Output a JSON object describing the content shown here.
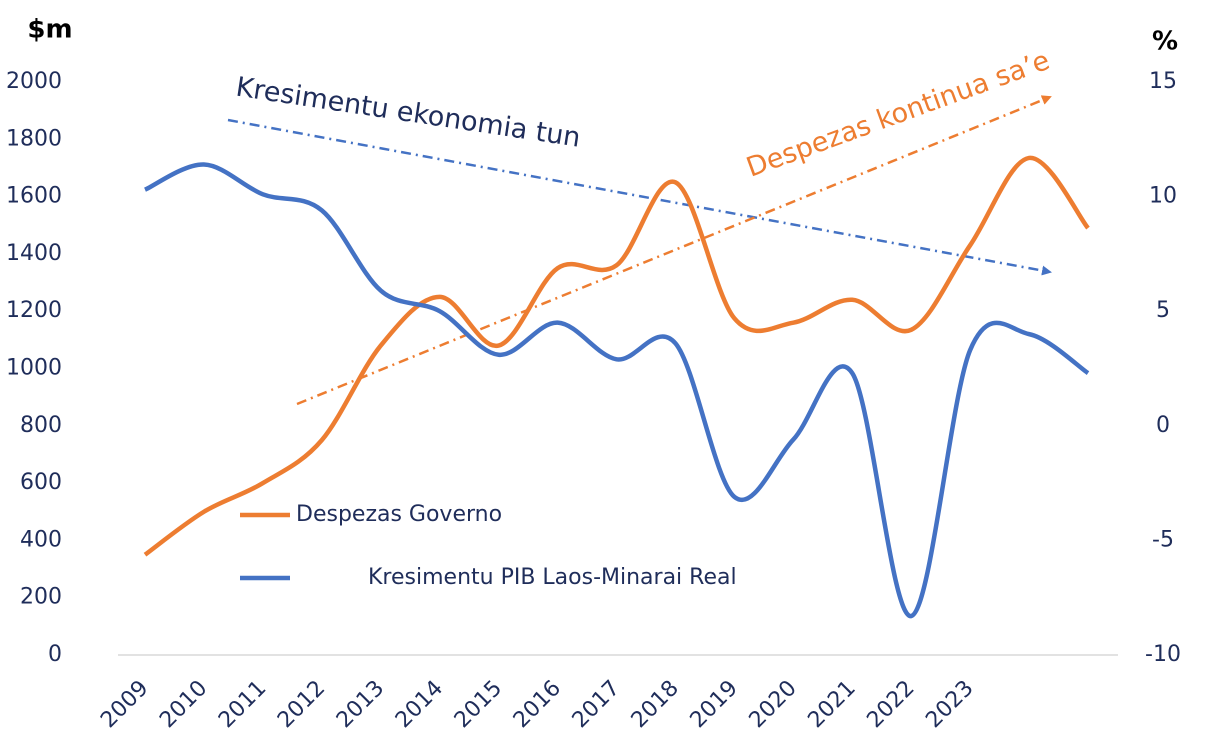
{
  "chart_data": {
    "type": "line",
    "y_label": "$m",
    "y2_label": "%",
    "categories": [
      "2009",
      "2010",
      "2011",
      "2012",
      "2013",
      "2014",
      "2015",
      "2016",
      "2017",
      "2018",
      "2019",
      "2020",
      "2021",
      "2022",
      "2023",
      null,
      null
    ],
    "series": [
      {
        "name": "Despezas Governo",
        "color": "#ed7d31",
        "values": [
          350,
          500,
          600,
          750,
          1080,
          1250,
          1080,
          1350,
          1360,
          1650,
          1175,
          1160,
          1240,
          1135,
          1430,
          1735,
          1490
        ]
      },
      {
        "name": "Kresimentu PIB Laos-Minarai Real",
        "color": "#4472c4",
        "axis": "y2",
        "values": [
          10.3,
          11.4,
          10.1,
          9.4,
          5.9,
          5.0,
          3.1,
          4.5,
          2.9,
          3.6,
          -3.1,
          -0.6,
          2.3,
          -8.3,
          3.3,
          4.0,
          2.3
        ]
      }
    ],
    "ylim": [
      0,
      2000
    ],
    "yticks": [
      0,
      200,
      400,
      600,
      800,
      1000,
      1200,
      1400,
      1600,
      1800,
      2000
    ],
    "y2lim": [
      -10,
      15
    ],
    "y2ticks": [
      -10,
      -5,
      0,
      5,
      10,
      15
    ],
    "annotations": [
      "Kresimentu ekonomia tun",
      "Despezas kontinua sa’e"
    ],
    "grid": false,
    "legend": "lower left"
  }
}
